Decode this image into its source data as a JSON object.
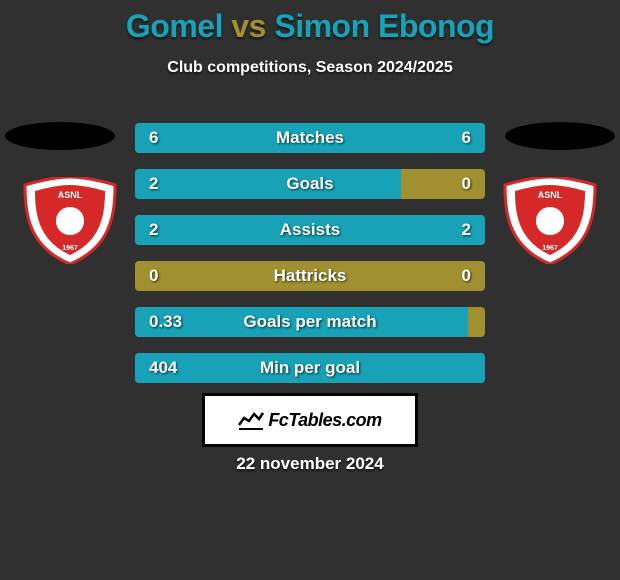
{
  "title": {
    "player1": "Gomel",
    "vs": "vs",
    "player2": "Simon Ebonog",
    "color_player": "#17a2b8",
    "color_vs": "#a09030"
  },
  "subtitle": "Club competitions, Season 2024/2025",
  "side_ellipses": {
    "left_color": "#000000",
    "right_color": "#000000"
  },
  "badges": {
    "left": {
      "bg": "#ffffff",
      "accent": "#d62828",
      "text": "ASNL",
      "year": "1967"
    },
    "right": {
      "bg": "#ffffff",
      "accent": "#d62828",
      "text": "ASNL",
      "year": "1967"
    }
  },
  "bars": {
    "track_color": "#a09030",
    "left_fill": "#17a2b8",
    "right_fill": "#17a2b8",
    "label_color": "#ffffff",
    "value_color": "#ffffff",
    "rows": [
      {
        "label": "Matches",
        "left_val": "6",
        "right_val": "6",
        "left_pct": 50,
        "right_pct": 50
      },
      {
        "label": "Goals",
        "left_val": "2",
        "right_val": "0",
        "left_pct": 76,
        "right_pct": 0
      },
      {
        "label": "Assists",
        "left_val": "2",
        "right_val": "2",
        "left_pct": 50,
        "right_pct": 50
      },
      {
        "label": "Hattricks",
        "left_val": "0",
        "right_val": "0",
        "left_pct": 0,
        "right_pct": 0
      },
      {
        "label": "Goals per match",
        "left_val": "0.33",
        "right_val": "",
        "left_pct": 95,
        "right_pct": 0
      },
      {
        "label": "Min per goal",
        "left_val": "404",
        "right_val": "",
        "left_pct": 100,
        "right_pct": 0
      }
    ]
  },
  "footer": {
    "brand": "FcTables.com",
    "date": "22 november 2024",
    "box_bg": "#ffffff",
    "box_border": "#000000"
  },
  "background_color": "#303030"
}
